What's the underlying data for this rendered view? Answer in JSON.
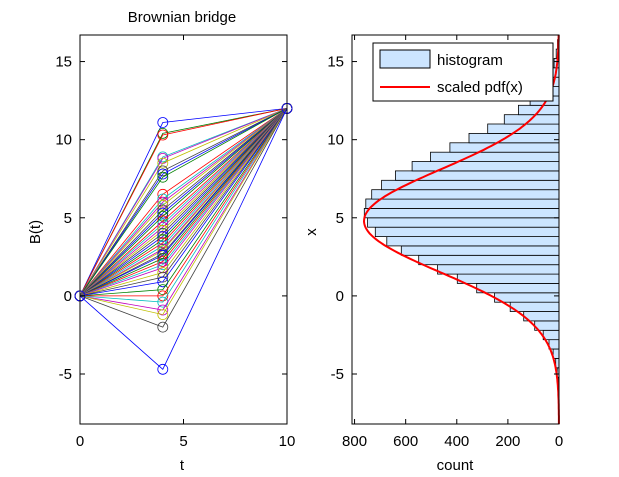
{
  "chart_data": [
    {
      "type": "line",
      "title": "Brownian bridge",
      "xlabel": "t",
      "ylabel": "B(t)",
      "xlim": [
        0,
        10
      ],
      "ylim": [
        -8.2,
        16.7
      ],
      "xticks": [
        0,
        5,
        10
      ],
      "yticks": [
        -5,
        0,
        5,
        10,
        15
      ],
      "x_nodes": [
        0,
        4,
        10
      ],
      "start_value": 0,
      "end_value": 12,
      "marker": "circle",
      "grid": false,
      "colors": [
        "#0000ff",
        "#008000",
        "#ff0000",
        "#00bfbf",
        "#bf00bf",
        "#bfbf00",
        "#404040"
      ],
      "mid_values": [
        11.1,
        10.4,
        10.3,
        8.9,
        8.8,
        8.5,
        8.0,
        7.8,
        7.6,
        6.5,
        6.2,
        6.0,
        5.8,
        5.5,
        5.3,
        5.1,
        4.8,
        4.6,
        4.4,
        4.2,
        4.0,
        3.8,
        3.6,
        3.4,
        3.2,
        3.0,
        2.9,
        2.7,
        2.6,
        2.4,
        2.2,
        2.0,
        1.8,
        1.5,
        1.2,
        0.9,
        0.4,
        0.0,
        -0.4,
        -0.9,
        -1.2,
        -2.0,
        -4.7
      ]
    },
    {
      "type": "bar",
      "orientation": "horizontal",
      "xlabel": "count",
      "ylabel": "x",
      "xlim": [
        810,
        0
      ],
      "ylim": [
        -8.2,
        16.7
      ],
      "xticks": [
        800,
        600,
        400,
        200,
        0
      ],
      "yticks": [
        -5,
        0,
        5,
        10,
        15
      ],
      "legend": {
        "position": "top-right",
        "entries": [
          "histogram",
          "scaled pdf(x)"
        ]
      },
      "bar_color": "#cce5ff",
      "pdf_color": "#ff0000",
      "bin_width": 0.6,
      "bin_start": -5.8,
      "counts": [
        4,
        7,
        13,
        23,
        39,
        62,
        95,
        138,
        191,
        252,
        322,
        398,
        475,
        549,
        617,
        674,
        719,
        749,
        762,
        756,
        733,
        694,
        640,
        575,
        503,
        427,
        352,
        279,
        214,
        159,
        113,
        77,
        51,
        32,
        19,
        11,
        6,
        3
      ],
      "pdf_mean": 4.8,
      "pdf_sd": 3.3,
      "pdf_peak": 763
    }
  ]
}
